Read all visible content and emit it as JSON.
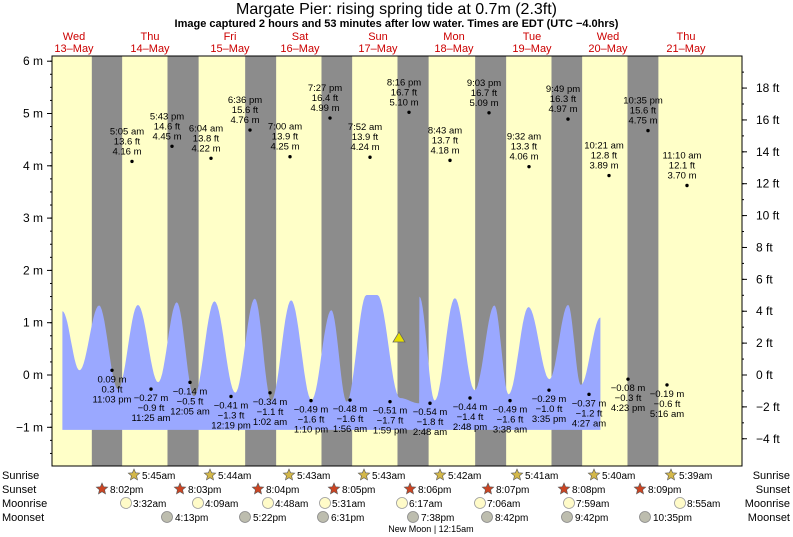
{
  "title": "Margate Pier: rising  spring tide at 0.7m (2.3ft)",
  "subtitle": "Image captured 2 hours and 53 minutes after low water. Times are EDT (UTC −4.0hrs)",
  "days": [
    {
      "dow": "Wed",
      "date": "13–May"
    },
    {
      "dow": "Thu",
      "date": "14–May"
    },
    {
      "dow": "Fri",
      "date": "15–May"
    },
    {
      "dow": "Sat",
      "date": "16–May"
    },
    {
      "dow": "Sun",
      "date": "17–May"
    },
    {
      "dow": "Mon",
      "date": "18–May"
    },
    {
      "dow": "Tue",
      "date": "19–May"
    },
    {
      "dow": "Wed",
      "date": "20–May"
    },
    {
      "dow": "Thu",
      "date": "21–May"
    }
  ],
  "colors": {
    "night": "#8c8c8c",
    "day": "#ffffc8",
    "tide": "#9aa8ff",
    "red": "#cc0000"
  },
  "row_labels": {
    "sunrise": "Sunrise",
    "sunset": "Sunset",
    "moonrise": "Moonrise",
    "moonset": "Moonset"
  },
  "sun_times": {
    "sunrise": [
      "5:45am",
      "5:44am",
      "5:43am",
      "5:43am",
      "5:42am",
      "5:41am",
      "5:40am",
      "5:39am"
    ],
    "sunset": [
      "8:02pm",
      "8:03pm",
      "8:04pm",
      "8:05pm",
      "8:06pm",
      "8:07pm",
      "8:08pm",
      "8:09pm"
    ]
  },
  "moon_times": {
    "moonrise": [
      "3:32am",
      "4:09am",
      "4:48am",
      "5:31am",
      "6:17am",
      "7:06am",
      "7:59am",
      "8:55am"
    ],
    "moonset": [
      "4:13pm",
      "5:22pm",
      "6:31pm",
      "7:38pm",
      "8:42pm",
      "9:42pm",
      "10:35pm"
    ]
  },
  "new_moon": "New Moon | 12:15am",
  "chart_data": {
    "type": "area",
    "title": "Margate Pier: rising  spring tide at 0.7m (2.3ft)",
    "y_left": {
      "unit": "m",
      "ticks": [
        "6 m",
        "5 m",
        "4 m",
        "3 m",
        "2 m",
        "1 m",
        "0 m",
        "−1 m"
      ],
      "range": [
        -1.5,
        6.0
      ]
    },
    "y_right": {
      "unit": "ft",
      "ticks": [
        "18 ft",
        "16 ft",
        "14 ft",
        "12 ft",
        "10 ft",
        "8 ft",
        "6 ft",
        "4 ft",
        "2 ft",
        "0 ft",
        "−2 ft",
        "−4 ft"
      ]
    },
    "current": {
      "t": 99.0,
      "m": 0.7
    },
    "tide_curve_m": [
      {
        "t": 10.5,
        "m": 1.22
      },
      {
        "t": 16.05,
        "m": 0.09
      },
      {
        "t": 22.4,
        "m": 1.33
      },
      {
        "t": 28.4,
        "m": -0.27
      },
      {
        "t": 34.7,
        "m": 1.34
      },
      {
        "t": 41.1,
        "m": -0.14
      },
      {
        "t": 47.0,
        "m": 1.39
      },
      {
        "t": 52.3,
        "m": -0.41
      },
      {
        "t": 58.6,
        "m": 1.41
      },
      {
        "t": 65.0,
        "m": -0.34
      },
      {
        "t": 71.0,
        "m": 1.46
      },
      {
        "t": 76.2,
        "m": -0.49
      },
      {
        "t": 82.45,
        "m": 1.43
      },
      {
        "t": 88.9,
        "m": -0.48
      },
      {
        "t": 95.15,
        "m": 1.24
      },
      {
        "t": 100.0,
        "m": -0.51
      },
      {
        "t": 106.25,
        "m": 1.53
      },
      {
        "t": 122.8,
        "m": -0.54
      },
      {
        "t": 109.7,
        "m": 1.53
      },
      {
        "t": 116.8,
        "m": -0.44
      },
      {
        "t": 122.9,
        "m": 1.5
      },
      {
        "t": 127.6,
        "m": -0.49
      },
      {
        "t": 133.8,
        "m": 1.47
      },
      {
        "t": 139.9,
        "m": -0.29
      },
      {
        "t": 146.0,
        "m": 1.33
      },
      {
        "t": 150.5,
        "m": -0.37
      },
      {
        "t": 156.8,
        "m": 1.3
      },
      {
        "t": 163.4,
        "m": -0.08
      },
      {
        "t": 169.3,
        "m": 1.34
      },
      {
        "t": 173.3,
        "m": -0.19
      },
      {
        "t": 179.5,
        "m": 1.1
      }
    ],
    "high_tides": [
      {
        "time": "5:05 am",
        "ft": "13.6 ft",
        "m": "4.16 m",
        "h": 4.16
      },
      {
        "time": "5:43 pm",
        "ft": "14.6 ft",
        "m": "4.45 m",
        "h": 4.45
      },
      {
        "time": "6:04 am",
        "ft": "13.8 ft",
        "m": "4.22 m",
        "h": 4.22
      },
      {
        "time": "6:36 pm",
        "ft": "15.6 ft",
        "m": "4.76 m",
        "h": 4.76
      },
      {
        "time": "7:00 am",
        "ft": "13.9 ft",
        "m": "4.25 m",
        "h": 4.25
      },
      {
        "time": "7:27 pm",
        "ft": "16.4 ft",
        "m": "4.99 m",
        "h": 4.99
      },
      {
        "time": "7:52 am",
        "ft": "13.9 ft",
        "m": "4.24 m",
        "h": 4.24
      },
      {
        "time": "8:16 pm",
        "ft": "16.7 ft",
        "m": "5.10 m",
        "h": 5.1
      },
      {
        "time": "8:43 am",
        "ft": "13.7 ft",
        "m": "4.18 m",
        "h": 4.18
      },
      {
        "time": "9:03 pm",
        "ft": "16.7 ft",
        "m": "5.09 m",
        "h": 5.09
      },
      {
        "time": "9:32 am",
        "ft": "13.3 ft",
        "m": "4.06 m",
        "h": 4.06
      },
      {
        "time": "9:49 pm",
        "ft": "16.3 ft",
        "m": "4.97 m",
        "h": 4.97
      },
      {
        "time": "10:21 am",
        "ft": "12.8 ft",
        "m": "3.89 m",
        "h": 3.89
      },
      {
        "time": "10:35 pm",
        "ft": "15.6 ft",
        "m": "4.75 m",
        "h": 4.75
      },
      {
        "time": "11:10 am",
        "ft": "12.1 ft",
        "m": "3.70 m",
        "h": 3.7
      }
    ],
    "low_tides": [
      {
        "m": "0.09 m",
        "ft": "0.3 ft",
        "time": "11:03 pm",
        "h": 0.09
      },
      {
        "m": "−0.27 m",
        "ft": "−0.9 ft",
        "time": "11:25 am",
        "h": -0.27
      },
      {
        "m": "−0.14 m",
        "ft": "−0.5 ft",
        "time": "12:05 am",
        "h": -0.14
      },
      {
        "m": "−0.41 m",
        "ft": "−1.3 ft",
        "time": "12:19 pm",
        "h": -0.41
      },
      {
        "m": "−0.34 m",
        "ft": "−1.1 ft",
        "time": "1:02 am",
        "h": -0.34
      },
      {
        "m": "−0.49 m",
        "ft": "−1.6 ft",
        "time": "1:10 pm",
        "h": -0.49
      },
      {
        "m": "−0.48 m",
        "ft": "−1.6 ft",
        "time": "1:56 am",
        "h": -0.48
      },
      {
        "m": "−0.51 m",
        "ft": "−1.7 ft",
        "time": "1:59 pm",
        "h": -0.51
      },
      {
        "m": "−0.54 m",
        "ft": "−1.8 ft",
        "time": "2:48 am",
        "h": -0.54
      },
      {
        "m": "−0.44 m",
        "ft": "−1.4 ft",
        "time": "2:48 pm",
        "h": -0.44
      },
      {
        "m": "−0.49 m",
        "ft": "−1.6 ft",
        "time": "3:38 am",
        "h": -0.49
      },
      {
        "m": "−0.29 m",
        "ft": "−1.0 ft",
        "time": "3:35 pm",
        "h": -0.29
      },
      {
        "m": "−0.37 m",
        "ft": "−1.2 ft",
        "time": "4:27 am",
        "h": -0.37
      },
      {
        "m": "−0.08 m",
        "ft": "−0.3 ft",
        "time": "4:23 pm",
        "h": -0.08
      },
      {
        "m": "−0.19 m",
        "ft": "−0.6 ft",
        "time": "5:16 am",
        "h": -0.19
      }
    ]
  }
}
